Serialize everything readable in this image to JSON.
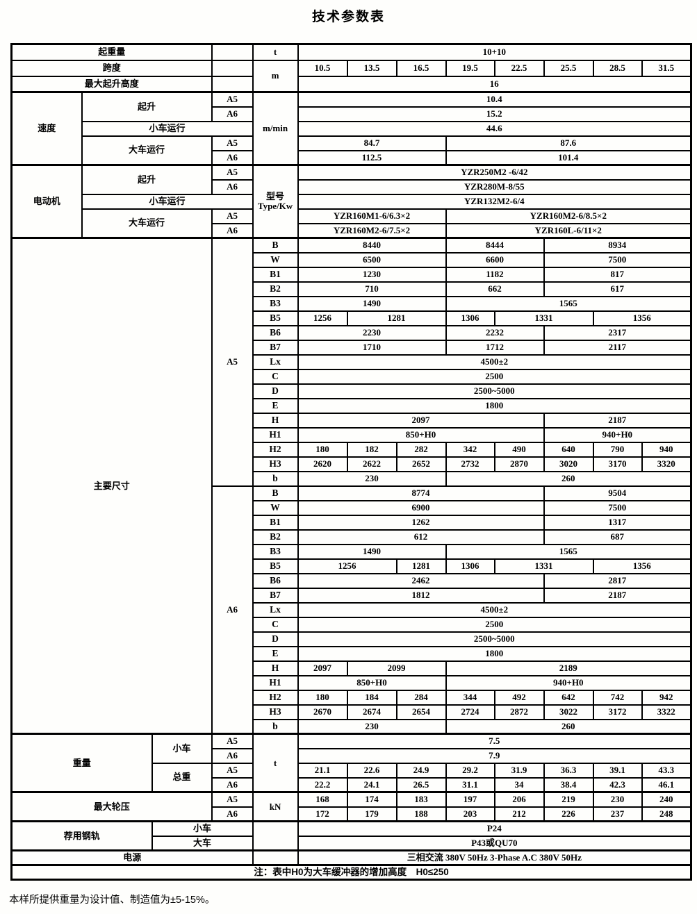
{
  "title": "技术参数表",
  "footer": "本样所提供重量为设计值、制造值为±5-15%。",
  "table": {
    "rows": [
      {
        "sec": true,
        "top": true,
        "cells": [
          {
            "t": "起重量",
            "c": 3,
            "k": "g"
          },
          {
            "t": "",
            "k": "e"
          },
          {
            "t": "t",
            "k": "u"
          },
          {
            "t": "10+10",
            "c": 8
          }
        ]
      },
      {
        "top": true,
        "cells": [
          {
            "t": "跨度",
            "c": 3,
            "k": "g"
          },
          {
            "t": "",
            "k": "e"
          },
          {
            "t": "m",
            "r": 2,
            "k": "u"
          },
          {
            "t": "10.5"
          },
          {
            "t": "13.5"
          },
          {
            "t": "16.5"
          },
          {
            "t": "19.5"
          },
          {
            "t": "22.5"
          },
          {
            "t": "25.5"
          },
          {
            "t": "28.5"
          },
          {
            "t": "31.5"
          }
        ]
      },
      {
        "top": true,
        "cells": [
          {
            "t": "最大起升高度",
            "c": 3,
            "k": "g"
          },
          {
            "t": "",
            "k": "e"
          },
          {
            "t": "16",
            "c": 8
          }
        ]
      },
      {
        "sec": true,
        "cells": [
          {
            "t": "速度",
            "r": 5,
            "k": "g"
          },
          {
            "t": "起升",
            "c": 2,
            "r": 2,
            "k": "s"
          },
          {
            "t": "A5",
            "k": "c"
          },
          {
            "t": "m/min",
            "r": 5,
            "k": "u"
          },
          {
            "t": "10.4",
            "c": 8
          }
        ]
      },
      {
        "cells": [
          {
            "t": "A6",
            "k": "c"
          },
          {
            "t": "15.2",
            "c": 8
          }
        ]
      },
      {
        "cells": [
          {
            "t": "小车运行",
            "c": 3,
            "k": "s"
          },
          {
            "t": "44.6",
            "c": 8
          }
        ]
      },
      {
        "cells": [
          {
            "t": "大车运行",
            "c": 2,
            "r": 2,
            "k": "s"
          },
          {
            "t": "A5",
            "k": "c"
          },
          {
            "t": "84.7",
            "c": 3
          },
          {
            "t": "87.6",
            "c": 5
          }
        ]
      },
      {
        "cells": [
          {
            "t": "A6",
            "k": "c"
          },
          {
            "t": "112.5",
            "c": 3
          },
          {
            "t": "101.4",
            "c": 5
          }
        ]
      },
      {
        "sec": true,
        "cells": [
          {
            "t": "电动机",
            "r": 5,
            "k": "g"
          },
          {
            "t": "起升",
            "c": 2,
            "r": 2,
            "k": "s"
          },
          {
            "t": "A5",
            "k": "c"
          },
          {
            "t": "型号\nType/Kw",
            "r": 5,
            "k": "u"
          },
          {
            "t": "YZR250M2 -6/42",
            "c": 8
          }
        ]
      },
      {
        "cells": [
          {
            "t": "A6",
            "k": "c"
          },
          {
            "t": "YZR280M-8/55",
            "c": 8
          }
        ]
      },
      {
        "cells": [
          {
            "t": "小车运行",
            "c": 3,
            "k": "s"
          },
          {
            "t": "YZR132M2-6/4",
            "c": 8
          }
        ]
      },
      {
        "cells": [
          {
            "t": "大车运行",
            "c": 2,
            "r": 2,
            "k": "s"
          },
          {
            "t": "A5",
            "k": "c"
          },
          {
            "t": "YZR160M1-6/6.3×2",
            "c": 3
          },
          {
            "t": "YZR160M2-6/8.5×2",
            "c": 5
          }
        ]
      },
      {
        "cells": [
          {
            "t": "A6",
            "k": "c"
          },
          {
            "t": "YZR160M2-6/7.5×2",
            "c": 3
          },
          {
            "t": "YZR160L-6/11×2",
            "c": 5
          }
        ]
      },
      {
        "sec": true,
        "cells": [
          {
            "t": "主要尺寸",
            "c": 3,
            "r": 34,
            "k": "g"
          },
          {
            "t": "A5",
            "r": 17,
            "k": "c"
          },
          {
            "t": "B",
            "k": "d"
          },
          {
            "t": "8440",
            "c": 3
          },
          {
            "t": "8444",
            "c": 2
          },
          {
            "t": "8934",
            "c": 3
          }
        ]
      },
      {
        "cells": [
          {
            "t": "W",
            "k": "d"
          },
          {
            "t": "6500",
            "c": 3
          },
          {
            "t": "6600",
            "c": 2
          },
          {
            "t": "7500",
            "c": 3
          }
        ]
      },
      {
        "cells": [
          {
            "t": "B1",
            "k": "d"
          },
          {
            "t": "1230",
            "c": 3
          },
          {
            "t": "1182",
            "c": 2
          },
          {
            "t": "817",
            "c": 3
          }
        ]
      },
      {
        "cells": [
          {
            "t": "B2",
            "k": "d"
          },
          {
            "t": "710",
            "c": 3
          },
          {
            "t": "662",
            "c": 2
          },
          {
            "t": "617",
            "c": 3
          }
        ]
      },
      {
        "cells": [
          {
            "t": "B3",
            "k": "d"
          },
          {
            "t": "1490",
            "c": 3
          },
          {
            "t": "1565",
            "c": 5
          }
        ]
      },
      {
        "cells": [
          {
            "t": "B5",
            "k": "d"
          },
          {
            "t": "1256"
          },
          {
            "t": "1281",
            "c": 2
          },
          {
            "t": "1306"
          },
          {
            "t": "1331",
            "c": 2
          },
          {
            "t": "1356",
            "c": 2
          }
        ]
      },
      {
        "cells": [
          {
            "t": "B6",
            "k": "d"
          },
          {
            "t": "2230",
            "c": 3
          },
          {
            "t": "2232",
            "c": 2
          },
          {
            "t": "2317",
            "c": 3
          }
        ]
      },
      {
        "cells": [
          {
            "t": "B7",
            "k": "d"
          },
          {
            "t": "1710",
            "c": 3
          },
          {
            "t": "1712",
            "c": 2
          },
          {
            "t": "2117",
            "c": 3
          }
        ]
      },
      {
        "cells": [
          {
            "t": "Lx",
            "k": "d"
          },
          {
            "t": "4500±2",
            "c": 8
          }
        ]
      },
      {
        "cells": [
          {
            "t": "C",
            "k": "d"
          },
          {
            "t": "2500",
            "c": 8
          }
        ]
      },
      {
        "cells": [
          {
            "t": "D",
            "k": "d"
          },
          {
            "t": "2500~5000",
            "c": 8
          }
        ]
      },
      {
        "cells": [
          {
            "t": "E",
            "k": "d"
          },
          {
            "t": "1800",
            "c": 8
          }
        ]
      },
      {
        "cells": [
          {
            "t": "H",
            "k": "d"
          },
          {
            "t": "2097",
            "c": 5
          },
          {
            "t": "2187",
            "c": 3
          }
        ]
      },
      {
        "cells": [
          {
            "t": "H1",
            "k": "d"
          },
          {
            "t": "850+H0",
            "c": 5
          },
          {
            "t": "940+H0",
            "c": 3
          }
        ]
      },
      {
        "cells": [
          {
            "t": "H2",
            "k": "d"
          },
          {
            "t": "180"
          },
          {
            "t": "182"
          },
          {
            "t": "282"
          },
          {
            "t": "342"
          },
          {
            "t": "490"
          },
          {
            "t": "640"
          },
          {
            "t": "790"
          },
          {
            "t": "940"
          }
        ]
      },
      {
        "cells": [
          {
            "t": "H3",
            "k": "d"
          },
          {
            "t": "2620"
          },
          {
            "t": "2622"
          },
          {
            "t": "2652"
          },
          {
            "t": "2732"
          },
          {
            "t": "2870"
          },
          {
            "t": "3020"
          },
          {
            "t": "3170"
          },
          {
            "t": "3320"
          }
        ]
      },
      {
        "cells": [
          {
            "t": "b",
            "k": "d"
          },
          {
            "t": "230",
            "c": 3
          },
          {
            "t": "260",
            "c": 5
          }
        ]
      },
      {
        "cells": [
          {
            "t": "A6",
            "r": 17,
            "k": "c"
          },
          {
            "t": "B",
            "k": "d"
          },
          {
            "t": "8774",
            "c": 5
          },
          {
            "t": "9504",
            "c": 3
          }
        ]
      },
      {
        "cells": [
          {
            "t": "W",
            "k": "d"
          },
          {
            "t": "6900",
            "c": 5
          },
          {
            "t": "7500",
            "c": 3
          }
        ]
      },
      {
        "cells": [
          {
            "t": "B1",
            "k": "d"
          },
          {
            "t": "1262",
            "c": 5
          },
          {
            "t": "1317",
            "c": 3
          }
        ]
      },
      {
        "cells": [
          {
            "t": "B2",
            "k": "d"
          },
          {
            "t": "612",
            "c": 5
          },
          {
            "t": "687",
            "c": 3
          }
        ]
      },
      {
        "cells": [
          {
            "t": "B3",
            "k": "d"
          },
          {
            "t": "1490",
            "c": 3
          },
          {
            "t": "1565",
            "c": 5
          }
        ]
      },
      {
        "cells": [
          {
            "t": "B5",
            "k": "d"
          },
          {
            "t": "1256",
            "c": 2
          },
          {
            "t": "1281"
          },
          {
            "t": "1306"
          },
          {
            "t": "1331",
            "c": 2
          },
          {
            "t": "1356",
            "c": 2
          }
        ]
      },
      {
        "cells": [
          {
            "t": "B6",
            "k": "d"
          },
          {
            "t": "2462",
            "c": 5
          },
          {
            "t": "2817",
            "c": 3
          }
        ]
      },
      {
        "cells": [
          {
            "t": "B7",
            "k": "d"
          },
          {
            "t": "1812",
            "c": 5
          },
          {
            "t": "2187",
            "c": 3
          }
        ]
      },
      {
        "cells": [
          {
            "t": "Lx",
            "k": "d"
          },
          {
            "t": "4500±2",
            "c": 8
          }
        ]
      },
      {
        "cells": [
          {
            "t": "C",
            "k": "d"
          },
          {
            "t": "2500",
            "c": 8
          }
        ]
      },
      {
        "cells": [
          {
            "t": "D",
            "k": "d"
          },
          {
            "t": "2500~5000",
            "c": 8
          }
        ]
      },
      {
        "cells": [
          {
            "t": "E",
            "k": "d"
          },
          {
            "t": "1800",
            "c": 8
          }
        ]
      },
      {
        "cells": [
          {
            "t": "H",
            "k": "d"
          },
          {
            "t": "2097"
          },
          {
            "t": "2099",
            "c": 2
          },
          {
            "t": "2189",
            "c": 5
          }
        ]
      },
      {
        "cells": [
          {
            "t": "H1",
            "k": "d"
          },
          {
            "t": "850+H0",
            "c": 3
          },
          {
            "t": "940+H0",
            "c": 5
          }
        ]
      },
      {
        "cells": [
          {
            "t": "H2",
            "k": "d"
          },
          {
            "t": "180"
          },
          {
            "t": "184"
          },
          {
            "t": "284"
          },
          {
            "t": "344"
          },
          {
            "t": "492"
          },
          {
            "t": "642"
          },
          {
            "t": "742"
          },
          {
            "t": "942"
          }
        ]
      },
      {
        "cells": [
          {
            "t": "H3",
            "k": "d"
          },
          {
            "t": "2670"
          },
          {
            "t": "2674"
          },
          {
            "t": "2654"
          },
          {
            "t": "2724"
          },
          {
            "t": "2872"
          },
          {
            "t": "3022"
          },
          {
            "t": "3172"
          },
          {
            "t": "3322"
          }
        ]
      },
      {
        "cells": [
          {
            "t": "b",
            "k": "d"
          },
          {
            "t": "230",
            "c": 3
          },
          {
            "t": "260",
            "c": 5
          }
        ]
      },
      {
        "sec": true,
        "cells": [
          {
            "t": "重量",
            "c": 2,
            "r": 4,
            "k": "g"
          },
          {
            "t": "小车",
            "r": 2,
            "k": "s"
          },
          {
            "t": "A5",
            "k": "c"
          },
          {
            "t": "t",
            "r": 4,
            "k": "u"
          },
          {
            "t": "7.5",
            "c": 8
          }
        ]
      },
      {
        "cells": [
          {
            "t": "A6",
            "k": "c"
          },
          {
            "t": "7.9",
            "c": 8
          }
        ]
      },
      {
        "cells": [
          {
            "t": "总重",
            "r": 2,
            "k": "s"
          },
          {
            "t": "A5",
            "k": "c"
          },
          {
            "t": "21.1"
          },
          {
            "t": "22.6"
          },
          {
            "t": "24.9"
          },
          {
            "t": "29.2"
          },
          {
            "t": "31.9"
          },
          {
            "t": "36.3"
          },
          {
            "t": "39.1"
          },
          {
            "t": "43.3"
          }
        ]
      },
      {
        "cells": [
          {
            "t": "A6",
            "k": "c"
          },
          {
            "t": "22.2"
          },
          {
            "t": "24.1"
          },
          {
            "t": "26.5"
          },
          {
            "t": "31.1"
          },
          {
            "t": "34"
          },
          {
            "t": "38.4"
          },
          {
            "t": "42.3"
          },
          {
            "t": "46.1"
          }
        ]
      },
      {
        "sec": true,
        "cells": [
          {
            "t": "最大轮压",
            "c": 3,
            "r": 2,
            "k": "g"
          },
          {
            "t": "A5",
            "k": "c"
          },
          {
            "t": "kN",
            "r": 2,
            "k": "u"
          },
          {
            "t": "168"
          },
          {
            "t": "174"
          },
          {
            "t": "183"
          },
          {
            "t": "197"
          },
          {
            "t": "206"
          },
          {
            "t": "219"
          },
          {
            "t": "230"
          },
          {
            "t": "240"
          }
        ]
      },
      {
        "cells": [
          {
            "t": "A6",
            "k": "c"
          },
          {
            "t": "172"
          },
          {
            "t": "179"
          },
          {
            "t": "188"
          },
          {
            "t": "203"
          },
          {
            "t": "212"
          },
          {
            "t": "226"
          },
          {
            "t": "237"
          },
          {
            "t": "248"
          }
        ]
      },
      {
        "sec": true,
        "cells": [
          {
            "t": "荐用钢轨",
            "c": 2,
            "r": 2,
            "k": "g"
          },
          {
            "t": "小车",
            "c": 2,
            "k": "s"
          },
          {
            "t": "",
            "r": 2,
            "k": "e"
          },
          {
            "t": "P24",
            "c": 8
          }
        ]
      },
      {
        "cells": [
          {
            "t": "大车",
            "c": 2,
            "k": "s"
          },
          {
            "t": "P43或QU70",
            "c": 8
          }
        ]
      },
      {
        "sec": true,
        "cells": [
          {
            "t": "电源",
            "c": 4,
            "k": "g"
          },
          {
            "t": "",
            "k": "e"
          },
          {
            "t": "三相交流 380V 50Hz 3-Phase A.C 380V 50Hz",
            "c": 8
          }
        ]
      },
      {
        "sec": true,
        "cells": [
          {
            "t": "注：表中H0为大车缓冲器的增加高度　H0≤250",
            "c": 13,
            "k": "n"
          }
        ]
      }
    ]
  }
}
